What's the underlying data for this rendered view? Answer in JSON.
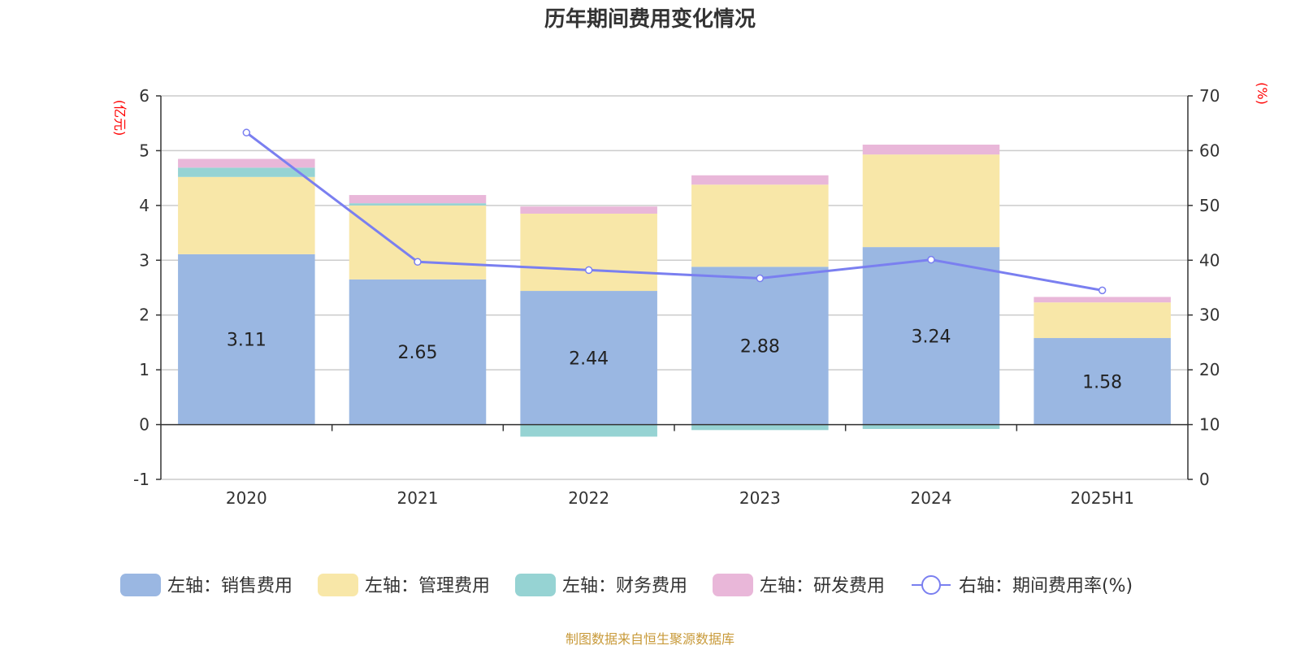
{
  "chart_data": {
    "type": "bar",
    "title": "历年期间费用变化情况",
    "categories": [
      "2020",
      "2021",
      "2022",
      "2023",
      "2024",
      "2025H1"
    ],
    "left_axis": {
      "unit": "(亿元)",
      "ylim": [
        -1,
        6
      ],
      "ticks": [
        -1,
        0,
        1,
        2,
        3,
        4,
        5,
        6
      ]
    },
    "right_axis": {
      "unit": "(%)",
      "ylim": [
        0,
        70
      ],
      "ticks": [
        0,
        10,
        20,
        30,
        40,
        50,
        60,
        70
      ]
    },
    "grid": true,
    "legend_position": "bottom",
    "series": [
      {
        "name": "左轴：销售费用",
        "axis": "left",
        "type": "bar",
        "color": "#9ab7e2",
        "values": [
          3.11,
          2.65,
          2.44,
          2.88,
          3.24,
          1.58
        ],
        "show_labels": true
      },
      {
        "name": "左轴：管理费用",
        "axis": "left",
        "type": "bar",
        "color": "#f8e7a8",
        "values": [
          1.41,
          1.35,
          1.41,
          1.5,
          1.69,
          0.65
        ],
        "show_labels": false
      },
      {
        "name": "左轴：财务费用",
        "axis": "left",
        "type": "bar",
        "color": "#96d3d3",
        "values": [
          0.17,
          0.04,
          -0.22,
          -0.1,
          -0.08,
          0.0
        ],
        "show_labels": false
      },
      {
        "name": "左轴：研发费用",
        "axis": "left",
        "type": "bar",
        "color": "#e9b7d9",
        "values": [
          0.16,
          0.15,
          0.13,
          0.17,
          0.18,
          0.1
        ],
        "show_labels": false
      },
      {
        "name": "右轴：期间费用率(%)",
        "axis": "right",
        "type": "line",
        "color": "#7a7ff0",
        "values": [
          63.3,
          39.7,
          38.2,
          36.7,
          40.1,
          34.5
        ]
      }
    ],
    "source": "制图数据来自恒生聚源数据库"
  }
}
